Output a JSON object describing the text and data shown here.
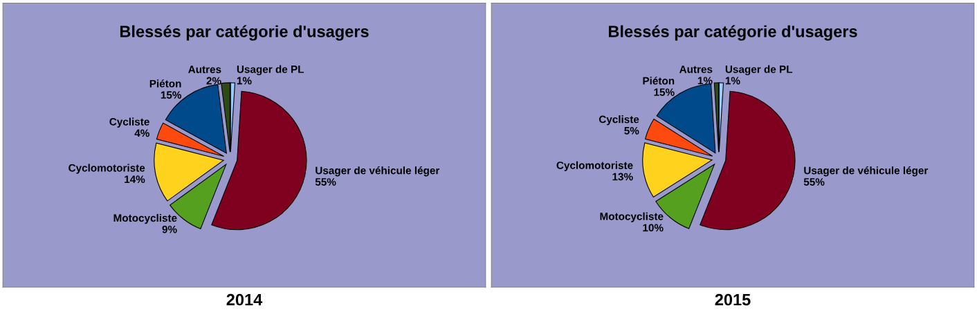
{
  "chart_data": [
    {
      "type": "pie",
      "title": "Blessés par catégorie d'usagers",
      "categories": [
        "Usager de PL",
        "Usager de véhicule léger",
        "Motocycliste",
        "Cyclomotoriste",
        "Cycliste",
        "Piéton",
        "Autres"
      ],
      "values": [
        1,
        55,
        9,
        14,
        4,
        15,
        2
      ],
      "value_labels": [
        "1%",
        "55%",
        "9%",
        "14%",
        "4%",
        "15%",
        "2%"
      ],
      "colors": [
        "#99ccff",
        "#800020",
        "#55a01e",
        "#ffd21e",
        "#ff4a0f",
        "#004a8c",
        "#2f4a14"
      ],
      "annotations": [
        "2014"
      ]
    },
    {
      "type": "pie",
      "title": "Blessés par catégorie d'usagers",
      "categories": [
        "Usager de PL",
        "Usager de véhicule léger",
        "Motocycliste",
        "Cyclomotoriste",
        "Cycliste",
        "Piéton",
        "Autres"
      ],
      "values": [
        1,
        55,
        10,
        13,
        5,
        15,
        1
      ],
      "value_labels": [
        "1%",
        "55%",
        "10%",
        "13%",
        "5%",
        "15%",
        "1%"
      ],
      "colors": [
        "#99ccff",
        "#800020",
        "#55a01e",
        "#ffd21e",
        "#ff4a0f",
        "#004a8c",
        "#2f4a14"
      ],
      "annotations": [
        "2015"
      ]
    }
  ]
}
